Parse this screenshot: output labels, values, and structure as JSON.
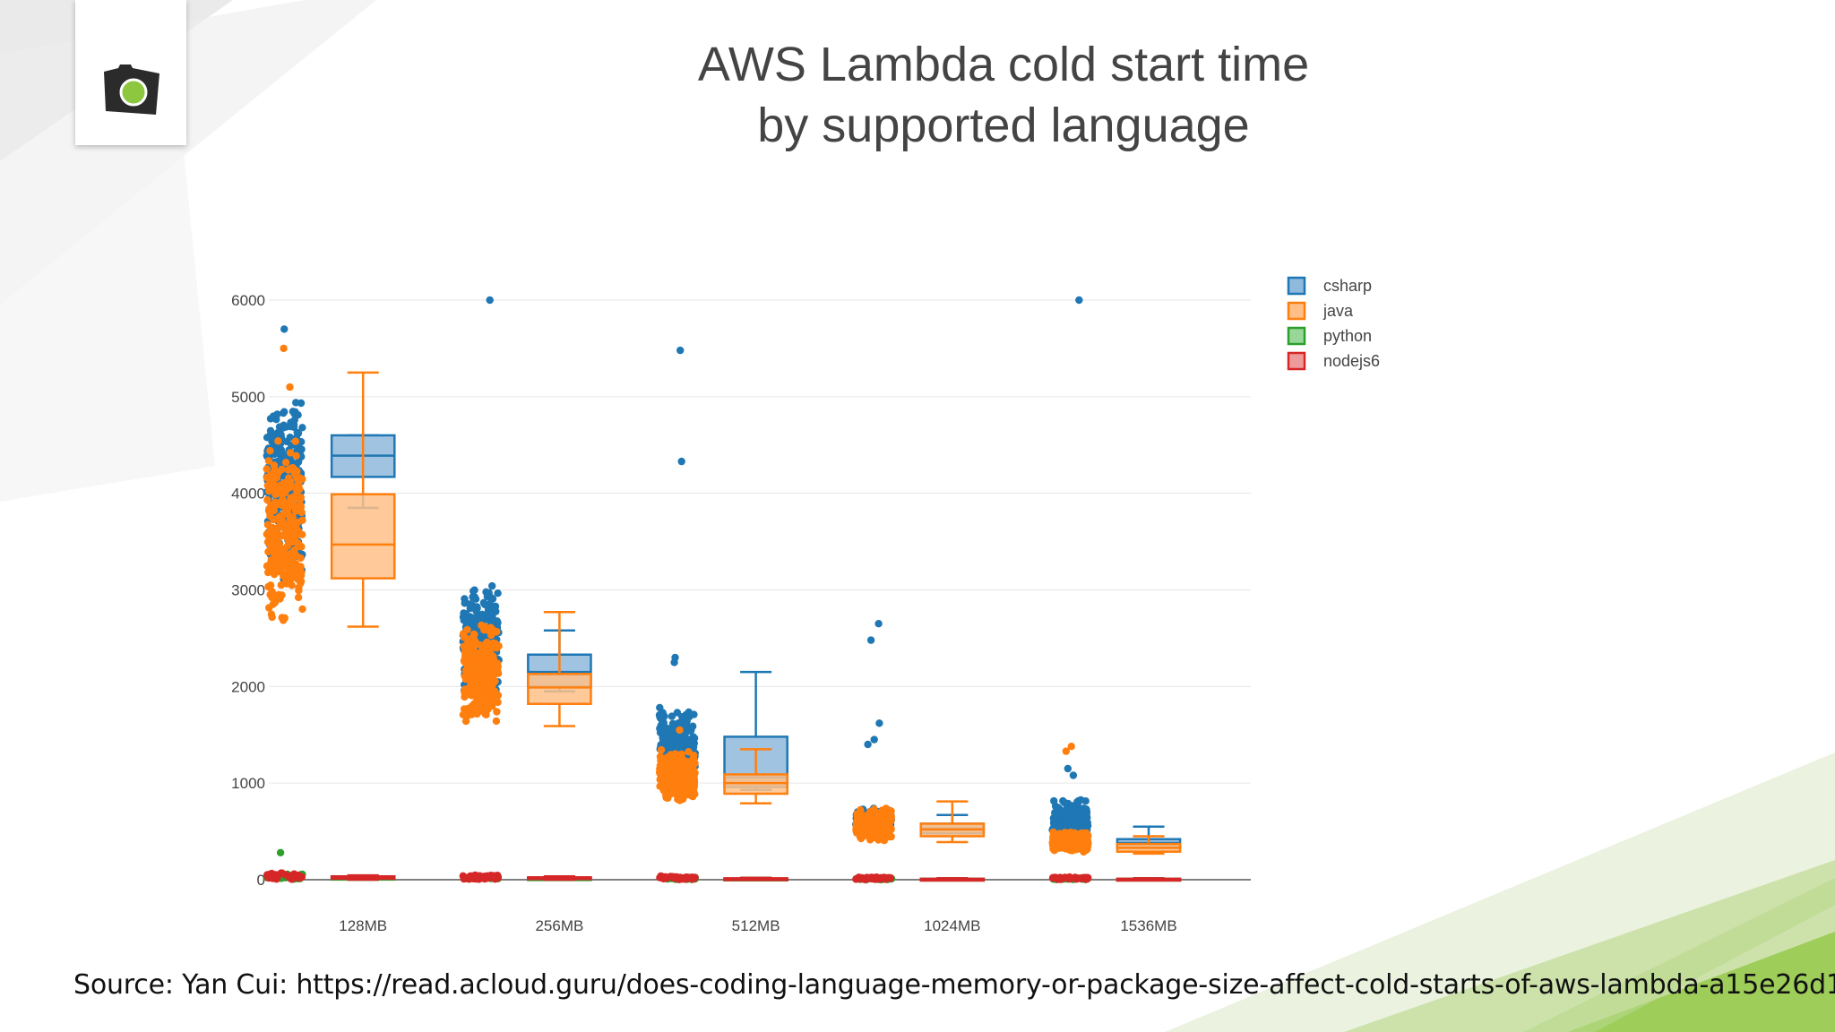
{
  "slide": {
    "title_line1": "AWS Lambda cold start time",
    "title_line2": "by supported language",
    "source": "Source: Yan Cui: https://read.acloud.guru/does-coding-language-memory-or-package-size-affect-cold-starts-of-aws-lambda-a15e26d12c76",
    "logo_icon": "camera-icon",
    "accent_color": "#8dc63f"
  },
  "chart_data": {
    "type": "box",
    "title": "",
    "xlabel": "",
    "ylabel": "",
    "ylim": [
      0,
      6000
    ],
    "yticks": [
      0,
      1000,
      2000,
      3000,
      4000,
      5000,
      6000
    ],
    "grid": true,
    "legend_position": "top-right",
    "categories": [
      "128MB",
      "256MB",
      "512MB",
      "1024MB",
      "1536MB"
    ],
    "series": [
      {
        "name": "csharp",
        "color": "#1f77b4",
        "fill": "#8fb9dd",
        "boxes": [
          {
            "min": 3850,
            "q1": 4170,
            "median": 4390,
            "q3": 4600,
            "max": 4600
          },
          {
            "min": 1950,
            "q1": 2000,
            "median": 2150,
            "q3": 2330,
            "max": 2580
          },
          {
            "min": 930,
            "q1": 960,
            "median": 1060,
            "q3": 1480,
            "max": 2150
          },
          {
            "min": 480,
            "q1": 480,
            "median": 530,
            "q3": 580,
            "max": 670
          },
          {
            "min": 330,
            "q1": 330,
            "median": 380,
            "q3": 420,
            "max": 550
          }
        ],
        "point_range": [
          [
            3100,
            5050
          ],
          [
            1900,
            3100
          ],
          [
            900,
            1800
          ],
          [
            450,
            750
          ],
          [
            300,
            850
          ]
        ],
        "outliers": [
          [
            5700
          ],
          [
            6000
          ],
          [
            5480,
            4330,
            2300,
            2250
          ],
          [
            2650,
            2480,
            1620,
            1450,
            1400
          ],
          [
            6000,
            1150,
            1080
          ]
        ]
      },
      {
        "name": "java",
        "color": "#ff7f0e",
        "fill": "#ffbf87",
        "boxes": [
          {
            "min": 2620,
            "q1": 3120,
            "median": 3470,
            "q3": 3990,
            "max": 5250
          },
          {
            "min": 1590,
            "q1": 1820,
            "median": 1990,
            "q3": 2130,
            "max": 2770
          },
          {
            "min": 790,
            "q1": 890,
            "median": 1000,
            "q3": 1090,
            "max": 1350
          },
          {
            "min": 390,
            "q1": 450,
            "median": 520,
            "q3": 580,
            "max": 810
          },
          {
            "min": 270,
            "q1": 290,
            "median": 330,
            "q3": 370,
            "max": 450
          }
        ],
        "point_range": [
          [
            2650,
            4600
          ],
          [
            1600,
            2700
          ],
          [
            800,
            1350
          ],
          [
            400,
            750
          ],
          [
            280,
            500
          ]
        ],
        "outliers": [
          [
            5500,
            5100
          ],
          [],
          [
            1550
          ],
          [],
          [
            1380,
            1330
          ]
        ]
      },
      {
        "name": "python",
        "color": "#2ca02c",
        "fill": "#98d798",
        "boxes": [
          {
            "min": 0,
            "q1": 5,
            "median": 10,
            "q3": 20,
            "max": 40
          },
          {
            "min": 0,
            "q1": 5,
            "median": 10,
            "q3": 15,
            "max": 30
          },
          {
            "min": 0,
            "q1": 5,
            "median": 8,
            "q3": 12,
            "max": 20
          },
          {
            "min": 0,
            "q1": 3,
            "median": 6,
            "q3": 10,
            "max": 15
          },
          {
            "min": 0,
            "q1": 3,
            "median": 6,
            "q3": 10,
            "max": 15
          }
        ],
        "point_range": [
          [
            0,
            60
          ],
          [
            0,
            40
          ],
          [
            0,
            30
          ],
          [
            0,
            20
          ],
          [
            0,
            20
          ]
        ],
        "outliers": [
          [
            280
          ],
          [],
          [],
          [],
          []
        ]
      },
      {
        "name": "nodejs6",
        "color": "#d62728",
        "fill": "#ee9a9a",
        "boxes": [
          {
            "min": 0,
            "q1": 10,
            "median": 20,
            "q3": 35,
            "max": 45
          },
          {
            "min": 0,
            "q1": 8,
            "median": 15,
            "q3": 25,
            "max": 35
          },
          {
            "min": 0,
            "q1": 5,
            "median": 10,
            "q3": 15,
            "max": 20
          },
          {
            "min": 0,
            "q1": 3,
            "median": 6,
            "q3": 10,
            "max": 15
          },
          {
            "min": 0,
            "q1": 3,
            "median": 6,
            "q3": 10,
            "max": 15
          }
        ],
        "point_range": [
          [
            0,
            80
          ],
          [
            0,
            50
          ],
          [
            0,
            40
          ],
          [
            0,
            30
          ],
          [
            0,
            30
          ]
        ],
        "outliers": [
          [],
          [],
          [],
          [],
          []
        ]
      }
    ]
  }
}
